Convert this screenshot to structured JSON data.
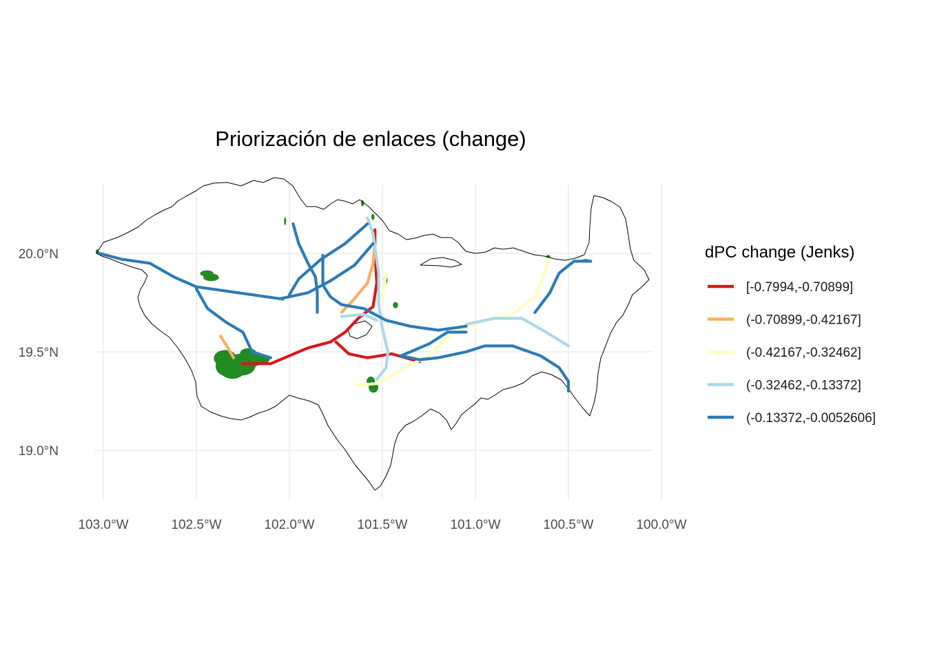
{
  "title": "Priorización de enlaces (change)",
  "x_axis": {
    "ticks": [
      {
        "value": -103.0,
        "label": "103.0°W"
      },
      {
        "value": -102.5,
        "label": "102.5°W"
      },
      {
        "value": -102.0,
        "label": "102.0°W"
      },
      {
        "value": -101.5,
        "label": "101.5°W"
      },
      {
        "value": -101.0,
        "label": "101.0°W"
      },
      {
        "value": -100.5,
        "label": "100.5°W"
      },
      {
        "value": -100.0,
        "label": "100.0°W"
      }
    ]
  },
  "y_axis": {
    "ticks": [
      {
        "value": 20.0,
        "label": "20.0°N"
      },
      {
        "value": 19.5,
        "label": "19.5°N"
      },
      {
        "value": 19.0,
        "label": "19.0°N"
      }
    ]
  },
  "legend": {
    "title": "dPC change (Jenks)",
    "placement": "right",
    "items": [
      {
        "label": "[-0.7994,-0.70899]",
        "color": "#d7191c"
      },
      {
        "label": "(-0.70899,-0.42167]",
        "color": "#fdae61"
      },
      {
        "label": "(-0.42167,-0.32462]",
        "color": "#ffffbf"
      },
      {
        "label": "(-0.32462,-0.13372]",
        "color": "#abd9e9"
      },
      {
        "label": "(-0.13372,-0.0052606]",
        "color": "#2c7bb6"
      }
    ]
  },
  "colors": {
    "habitat_patch": "#228b22",
    "boundary": "#000000",
    "grid": "#ebebeb"
  },
  "chart_data": {
    "type": "map",
    "xlim": [
      -103.05,
      -100.05
    ],
    "ylim": [
      18.75,
      20.35
    ],
    "grid": true,
    "routes": [
      {
        "class": 0,
        "points": [
          [
            -102.25,
            19.44
          ],
          [
            -102.1,
            19.44
          ],
          [
            -102.0,
            19.48
          ],
          [
            -101.9,
            19.52
          ],
          [
            -101.78,
            19.55
          ],
          [
            -101.7,
            19.6
          ],
          [
            -101.63,
            19.67
          ],
          [
            -101.55,
            19.73
          ],
          [
            -101.53,
            19.85
          ],
          [
            -101.54,
            20.0
          ],
          [
            -101.54,
            20.12
          ]
        ]
      },
      {
        "class": 0,
        "points": [
          [
            -101.75,
            19.55
          ],
          [
            -101.68,
            19.49
          ],
          [
            -101.58,
            19.47
          ],
          [
            -101.45,
            19.49
          ],
          [
            -101.3,
            19.45
          ]
        ]
      },
      {
        "class": 1,
        "points": [
          [
            -102.37,
            19.58
          ],
          [
            -102.33,
            19.52
          ],
          [
            -102.3,
            19.47
          ]
        ]
      },
      {
        "class": 1,
        "points": [
          [
            -101.72,
            19.7
          ],
          [
            -101.65,
            19.77
          ],
          [
            -101.58,
            19.85
          ],
          [
            -101.55,
            19.95
          ],
          [
            -101.54,
            20.05
          ]
        ]
      },
      {
        "class": 2,
        "points": [
          [
            -101.64,
            19.33
          ],
          [
            -101.52,
            19.34
          ],
          [
            -101.38,
            19.42
          ],
          [
            -101.25,
            19.48
          ],
          [
            -101.12,
            19.6
          ],
          [
            -100.95,
            19.66
          ],
          [
            -100.8,
            19.69
          ],
          [
            -100.68,
            19.78
          ],
          [
            -100.62,
            19.92
          ],
          [
            -100.61,
            19.97
          ]
        ]
      },
      {
        "class": 2,
        "points": [
          [
            -101.5,
            19.77
          ],
          [
            -101.48,
            19.9
          ]
        ]
      },
      {
        "class": 3,
        "points": [
          [
            -101.58,
            20.18
          ],
          [
            -101.55,
            20.1
          ],
          [
            -101.52,
            19.9
          ],
          [
            -101.52,
            19.74
          ],
          [
            -101.5,
            19.62
          ],
          [
            -101.47,
            19.5
          ],
          [
            -101.48,
            19.42
          ],
          [
            -101.53,
            19.36
          ]
        ]
      },
      {
        "class": 3,
        "points": [
          [
            -101.72,
            19.68
          ],
          [
            -101.6,
            19.69
          ],
          [
            -101.53,
            19.66
          ]
        ]
      },
      {
        "class": 3,
        "points": [
          [
            -101.05,
            19.64
          ],
          [
            -100.9,
            19.67
          ],
          [
            -100.75,
            19.67
          ],
          [
            -100.62,
            19.6
          ],
          [
            -100.5,
            19.53
          ]
        ]
      },
      {
        "class": 4,
        "points": [
          [
            -103.02,
            20.0
          ],
          [
            -102.9,
            19.97
          ],
          [
            -102.75,
            19.95
          ],
          [
            -102.62,
            19.88
          ],
          [
            -102.5,
            19.83
          ],
          [
            -102.35,
            19.81
          ],
          [
            -102.2,
            19.79
          ],
          [
            -102.05,
            19.77
          ],
          [
            -101.9,
            19.8
          ],
          [
            -101.78,
            19.86
          ],
          [
            -101.65,
            19.94
          ],
          [
            -101.55,
            20.05
          ]
        ]
      },
      {
        "class": 4,
        "points": [
          [
            -102.5,
            19.82
          ],
          [
            -102.44,
            19.72
          ],
          [
            -102.34,
            19.65
          ],
          [
            -102.25,
            19.6
          ],
          [
            -102.2,
            19.5
          ],
          [
            -102.1,
            19.47
          ]
        ]
      },
      {
        "class": 4,
        "points": [
          [
            -101.98,
            20.15
          ],
          [
            -101.95,
            20.05
          ],
          [
            -101.9,
            19.95
          ],
          [
            -101.86,
            19.88
          ],
          [
            -101.85,
            19.8
          ],
          [
            -101.85,
            19.7
          ]
        ]
      },
      {
        "class": 4,
        "points": [
          [
            -101.58,
            20.15
          ],
          [
            -101.7,
            20.05
          ],
          [
            -101.83,
            19.97
          ],
          [
            -101.95,
            19.87
          ],
          [
            -102.0,
            19.79
          ]
        ]
      },
      {
        "class": 4,
        "points": [
          [
            -101.82,
            19.99
          ],
          [
            -101.82,
            19.84
          ],
          [
            -101.78,
            19.78
          ],
          [
            -101.72,
            19.74
          ],
          [
            -101.6,
            19.72
          ],
          [
            -101.48,
            19.66
          ],
          [
            -101.35,
            19.63
          ],
          [
            -101.2,
            19.61
          ],
          [
            -101.05,
            19.63
          ]
        ]
      },
      {
        "class": 4,
        "points": [
          [
            -101.05,
            19.6
          ],
          [
            -101.15,
            19.6
          ],
          [
            -101.25,
            19.54
          ],
          [
            -101.4,
            19.48
          ],
          [
            -101.3,
            19.46
          ],
          [
            -101.2,
            19.47
          ],
          [
            -101.05,
            19.5
          ],
          [
            -100.95,
            19.53
          ],
          [
            -100.8,
            19.53
          ],
          [
            -100.65,
            19.48
          ],
          [
            -100.55,
            19.42
          ],
          [
            -100.5,
            19.35
          ],
          [
            -100.5,
            19.3
          ]
        ]
      },
      {
        "class": 4,
        "points": [
          [
            -100.68,
            19.7
          ],
          [
            -100.6,
            19.8
          ],
          [
            -100.55,
            19.9
          ],
          [
            -100.47,
            19.96
          ],
          [
            -100.38,
            19.96
          ]
        ]
      }
    ]
  }
}
